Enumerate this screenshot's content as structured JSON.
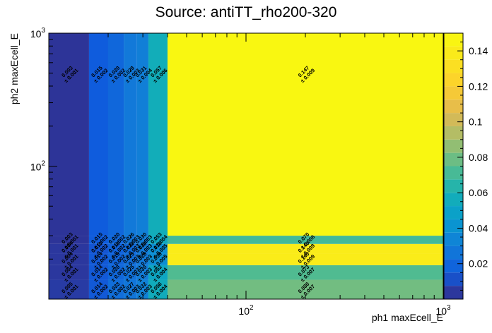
{
  "chart_data": {
    "type": "heatmap",
    "title": "Source: antiTT_rho200-320",
    "xlabel": "ph1 maxEcell_E",
    "ylabel": "ph2 maxEcell_E",
    "x_scale": "log",
    "y_scale": "log",
    "xlim": [
      10,
      1000
    ],
    "ylim": [
      10,
      1000
    ],
    "x_ticks": [
      {
        "base": "10",
        "exp": "2"
      },
      {
        "base": "10",
        "exp": "3"
      }
    ],
    "y_ticks": [
      {
        "base": "10",
        "exp": "2"
      },
      {
        "base": "10",
        "exp": "3"
      }
    ],
    "colorbar": {
      "range": [
        0,
        0.15
      ],
      "ticks": [
        "0.02",
        "0.04",
        "0.06",
        "0.08",
        "0.1",
        "0.12",
        "0.14"
      ],
      "tick_values": [
        0.02,
        0.04,
        0.06,
        0.08,
        0.1,
        0.12,
        0.14
      ]
    },
    "x_edges": [
      10,
      16,
      20,
      24,
      28,
      32,
      40,
      1000
    ],
    "y_edges": [
      10,
      14,
      18,
      22,
      26,
      30,
      1000
    ],
    "cells": [
      {
        "xi": 0,
        "yi": 0,
        "value": 0.005,
        "err": 0.001,
        "label": "0.005\n± 0.001"
      },
      {
        "xi": 1,
        "yi": 0,
        "value": 0.014,
        "err": 0.002,
        "label": "0.014\n± 0.002"
      },
      {
        "xi": 2,
        "yi": 0,
        "value": 0.023,
        "err": 0.002,
        "label": "0.023\n± 0.002"
      },
      {
        "xi": 3,
        "yi": 0,
        "value": 0.027,
        "err": 0.003,
        "label": "0.027\n± 0.003"
      },
      {
        "xi": 4,
        "yi": 0,
        "value": 0.032,
        "err": 0.003,
        "label": "0.032\n± 0.003"
      },
      {
        "xi": 5,
        "yi": 0,
        "value": 0.056,
        "err": 0.004,
        "label": "0.056\n± 0.004"
      },
      {
        "xi": 6,
        "yi": 0,
        "value": 0.08,
        "err": 0.007,
        "label": "0.080\n± 0.007"
      },
      {
        "xi": 0,
        "yi": 1,
        "value": 0.004,
        "err": 0.001,
        "label": "0.004\n± 0.001"
      },
      {
        "xi": 1,
        "yi": 1,
        "value": 0.014,
        "err": 0.002,
        "label": "0.014\n± 0.002"
      },
      {
        "xi": 2,
        "yi": 1,
        "value": 0.02,
        "err": 0.002,
        "label": "0.020\n± 0.002"
      },
      {
        "xi": 3,
        "yi": 1,
        "value": 0.025,
        "err": 0.003,
        "label": "0.025\n± 0.003"
      },
      {
        "xi": 4,
        "yi": 1,
        "value": 0.03,
        "err": 0.003,
        "label": "0.030\n± 0.003"
      },
      {
        "xi": 5,
        "yi": 1,
        "value": 0.052,
        "err": 0.004,
        "label": "0.052\n± 0.004"
      },
      {
        "xi": 6,
        "yi": 1,
        "value": 0.073,
        "err": 0.007,
        "label": "0.073\n± 0.007"
      },
      {
        "xi": 0,
        "yi": 2,
        "value": 0.004,
        "err": 0.001,
        "label": "0.004\n± 0.001"
      },
      {
        "xi": 1,
        "yi": 2,
        "value": 0.014,
        "err": 0.002,
        "label": "0.014\n± 0.002"
      },
      {
        "xi": 2,
        "yi": 2,
        "value": 0.019,
        "err": 0.002,
        "label": "0.019\n± 0.002"
      },
      {
        "xi": 3,
        "yi": 2,
        "value": 0.023,
        "err": 0.003,
        "label": "0.023\n± 0.003"
      },
      {
        "xi": 4,
        "yi": 2,
        "value": 0.028,
        "err": 0.003,
        "label": "0.028\n± 0.003"
      },
      {
        "xi": 5,
        "yi": 2,
        "value": 0.038,
        "err": 0.005,
        "label": "0.038\n± 0.005"
      },
      {
        "xi": 6,
        "yi": 2,
        "value": 0.14,
        "err": 0.009,
        "label": "0.140\n± 0.009"
      },
      {
        "xi": 0,
        "yi": 3,
        "value": 0.004,
        "err": 0.001,
        "label": "0.004\n± 0.001"
      },
      {
        "xi": 1,
        "yi": 3,
        "value": 0.013,
        "err": 0.002,
        "label": "0.013\n± 0.002"
      },
      {
        "xi": 2,
        "yi": 3,
        "value": 0.018,
        "err": 0.002,
        "label": "0.018\n± 0.002"
      },
      {
        "xi": 3,
        "yi": 3,
        "value": 0.022,
        "err": 0.003,
        "label": "0.022\n± 0.003"
      },
      {
        "xi": 4,
        "yi": 3,
        "value": 0.028,
        "err": 0.003,
        "label": "0.028\n± 0.003"
      },
      {
        "xi": 5,
        "yi": 3,
        "value": 0.038,
        "err": 0.005,
        "label": "0.038\n± 0.005"
      },
      {
        "xi": 6,
        "yi": 3,
        "value": 0.14,
        "err": 0.009,
        "label": "0.140\n± 0.009"
      },
      {
        "xi": 0,
        "yi": 4,
        "value": 0.003,
        "err": 0.001,
        "label": "0.003\n± 0.001"
      },
      {
        "xi": 1,
        "yi": 4,
        "value": 0.015,
        "err": 0.002,
        "label": "0.015\n± 0.002"
      },
      {
        "xi": 2,
        "yi": 4,
        "value": 0.02,
        "err": 0.002,
        "label": "0.020\n± 0.002"
      },
      {
        "xi": 3,
        "yi": 4,
        "value": 0.026,
        "err": 0.003,
        "label": "0.026\n± 0.003"
      },
      {
        "xi": 4,
        "yi": 4,
        "value": 0.03,
        "err": 0.003,
        "label": "0.030\n± 0.003"
      },
      {
        "xi": 5,
        "yi": 4,
        "value": 0.053,
        "err": 0.004,
        "label": "0.053\n± 0.004"
      },
      {
        "xi": 6,
        "yi": 4,
        "value": 0.07,
        "err": 0.006,
        "label": "0.070\n± 0.006"
      },
      {
        "xi": 0,
        "yi": 5,
        "value": 0.003,
        "err": 0.001,
        "label": "0.003\n± 0.001"
      },
      {
        "xi": 1,
        "yi": 5,
        "value": 0.015,
        "err": 0.002,
        "label": "0.015\n± 0.002"
      },
      {
        "xi": 2,
        "yi": 5,
        "value": 0.02,
        "err": 0.002,
        "label": "0.020\n± 0.002"
      },
      {
        "xi": 3,
        "yi": 5,
        "value": 0.028,
        "err": 0.003,
        "label": "0.028\n± 0.003"
      },
      {
        "xi": 4,
        "yi": 5,
        "value": 0.031,
        "err": 0.004,
        "label": "0.031\n± 0.004"
      },
      {
        "xi": 5,
        "yi": 5,
        "value": 0.057,
        "err": 0.006,
        "label": "0.057\n± 0.006"
      },
      {
        "xi": 6,
        "yi": 5,
        "value": 0.147,
        "err": 0.009,
        "label": "0.147\n± 0.009"
      }
    ],
    "grid": false
  }
}
